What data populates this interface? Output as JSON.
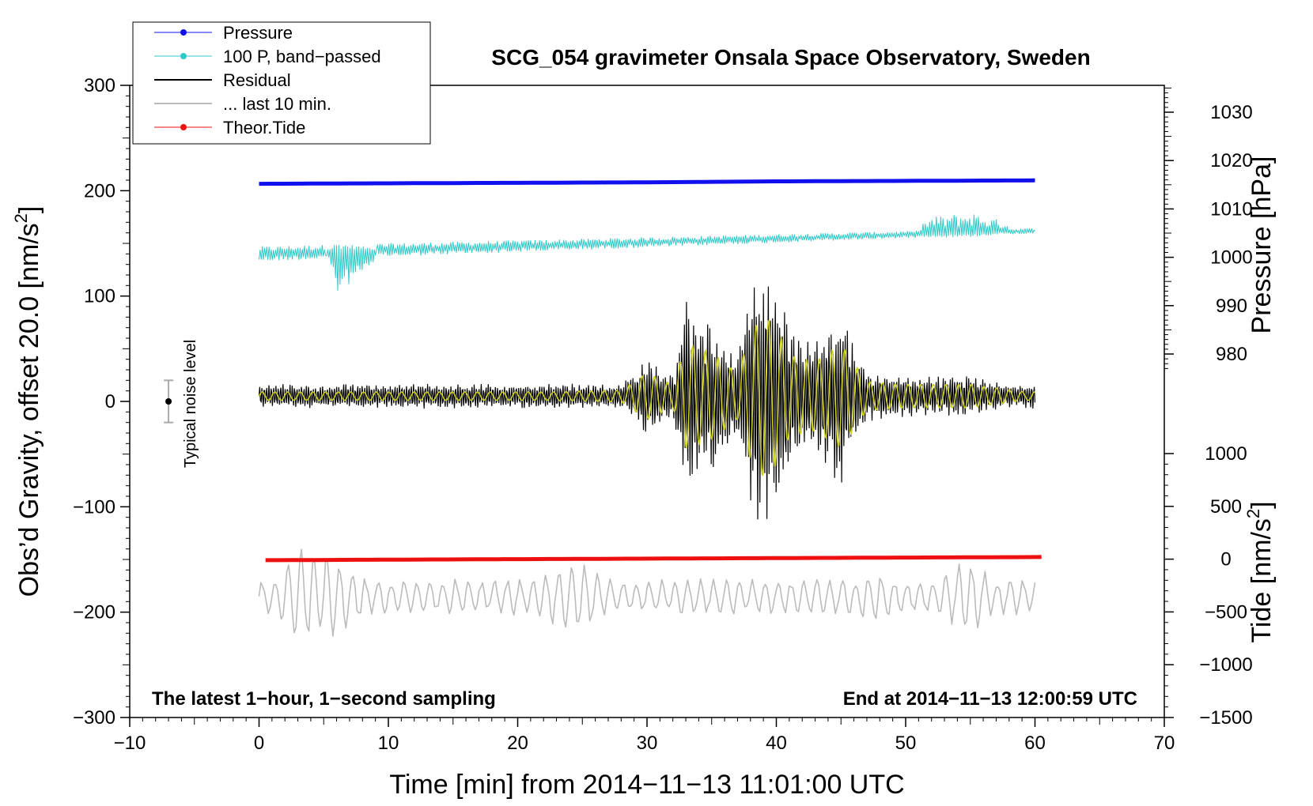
{
  "chart_data": {
    "type": "line",
    "title": "SCG_054 gravimeter Onsala Space Observatory, Sweden",
    "xlabel": "Time [min] from 2014−11−13 11:01:00 UTC",
    "ylabel_left": "Obs’d Gravity, offset 20.0 [nm/s",
    "ylabel_left_close": "]",
    "ylabel_pressure": "Pressure [hPa]",
    "ylabel_tide": "Tide [nm/s",
    "ylabel_tide_close": "]",
    "unit_superscript": "2",
    "xlim": [
      -10,
      70
    ],
    "ylim_left": [
      -300,
      300
    ],
    "ylim_pressure": [
      975,
      1035
    ],
    "ylim_tide": [
      -1500,
      1000
    ],
    "x_ticks": [
      "−10",
      "0",
      "10",
      "20",
      "30",
      "40",
      "50",
      "60",
      "70"
    ],
    "left_ticks": [
      "−300",
      "−200",
      "−100",
      "0",
      "100",
      "200",
      "300"
    ],
    "pressure_ticks": [
      "980",
      "990",
      "1000",
      "1010",
      "1020",
      "1030"
    ],
    "tide_ticks": [
      "−1500",
      "−1000",
      "−500",
      "0",
      "500",
      "1000"
    ],
    "annotation_left": "The latest 1−hour, 1−second sampling",
    "annotation_right": "End at 2014−11−13 12:00:59 UTC",
    "noise_label": "Typical noise level",
    "noise_bar": {
      "x": -7,
      "center": 0,
      "half_range": 20
    },
    "legend": [
      {
        "label": "Pressure",
        "color": "#1010ee",
        "marker": true
      },
      {
        "label": "100 P, band−passed",
        "color": "#30c8c8",
        "marker": true
      },
      {
        "label": "Residual",
        "color": "#000000",
        "marker": false
      },
      {
        "label": "... last 10 min.",
        "color": "#bbbbbb",
        "marker": false
      },
      {
        "label": "Theor.Tide",
        "color": "#ee1010",
        "marker": true
      }
    ],
    "series": [
      {
        "name": "Pressure",
        "color": "#1010ee",
        "axis": "pressure",
        "x": [
          0,
          10,
          20,
          30,
          40,
          50,
          60
        ],
        "values": [
          1015.2,
          1015.3,
          1015.4,
          1015.5,
          1015.7,
          1015.8,
          1015.9
        ]
      },
      {
        "name": "100 P, band−passed",
        "color": "#30c8c8",
        "axis": "left",
        "x": [
          0,
          5,
          6,
          10,
          20,
          30,
          40,
          50,
          52,
          55,
          60
        ],
        "values": [
          140,
          142,
          100,
          145,
          150,
          152,
          155,
          160,
          175,
          180,
          162
        ]
      },
      {
        "name": "Residual",
        "color": "#000000",
        "axis": "left",
        "x": [
          0,
          10,
          20,
          28,
          30,
          32,
          33,
          35,
          37,
          38,
          39,
          40,
          41,
          43,
          45,
          47,
          50,
          55,
          60
        ],
        "values": [
          5,
          6,
          6,
          10,
          40,
          20,
          90,
          75,
          40,
          110,
          140,
          120,
          70,
          60,
          90,
          25,
          20,
          20,
          5
        ]
      },
      {
        "name": "... last 10 min.",
        "color": "#bbbbbb",
        "axis": "left",
        "x": [
          0,
          3,
          6,
          10,
          20,
          25,
          30,
          40,
          48,
          50,
          55,
          60
        ],
        "values": [
          -205,
          -130,
          -145,
          -180,
          -170,
          -148,
          -190,
          -200,
          -155,
          -180,
          -225,
          -165
        ]
      },
      {
        "name": "Theor.Tide",
        "color": "#ee1010",
        "axis": "tide",
        "x": [
          0.5,
          10,
          20,
          30,
          40,
          50,
          60.5
        ],
        "values": [
          -10,
          -5,
          0,
          5,
          10,
          15,
          20
        ]
      }
    ]
  }
}
